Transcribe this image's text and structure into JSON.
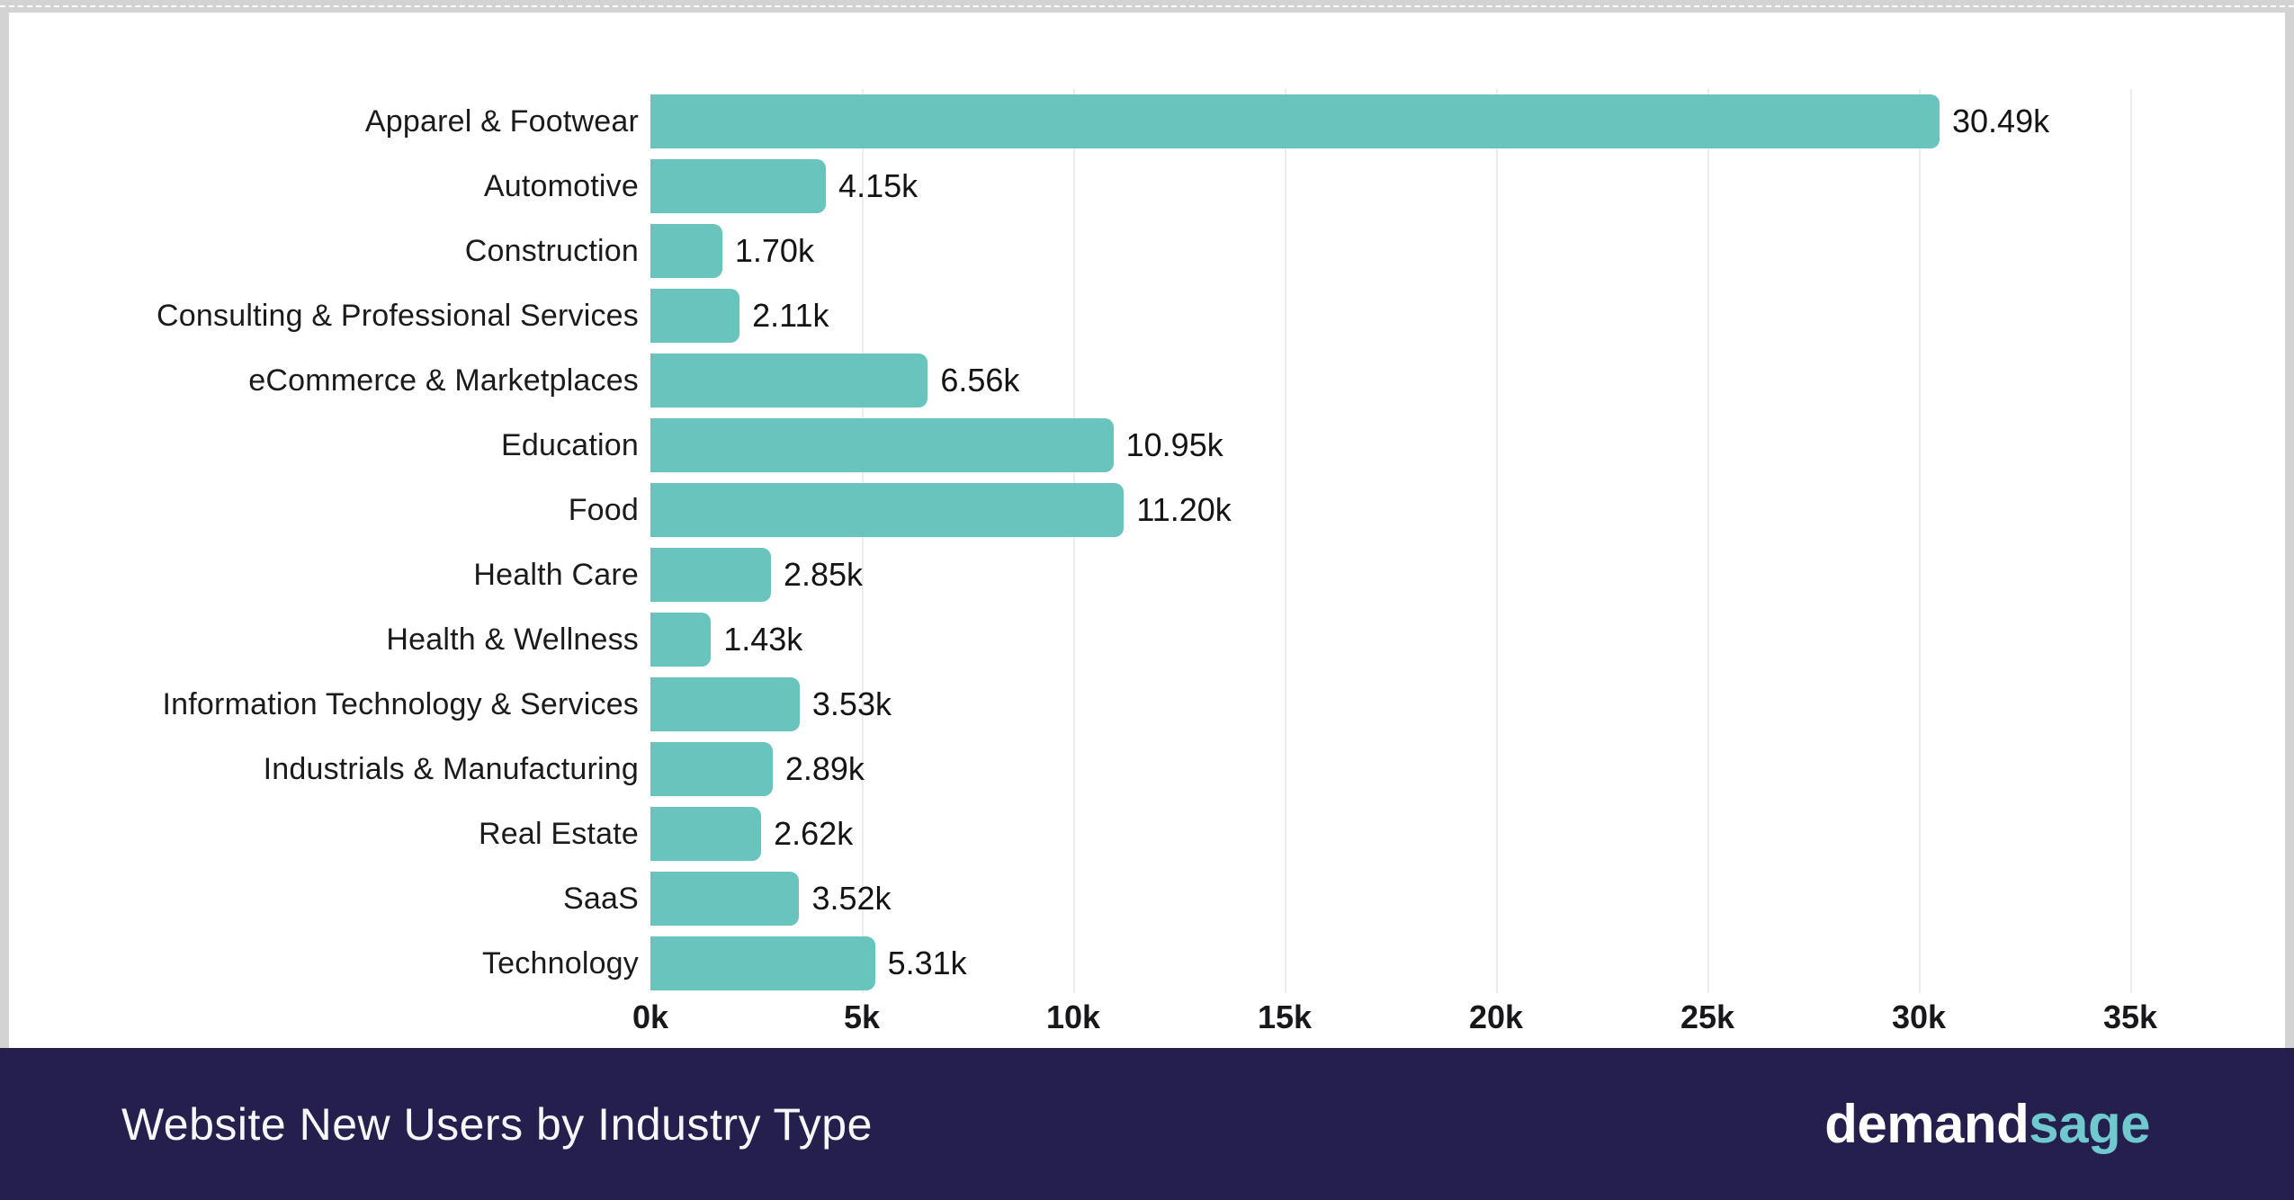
{
  "colors": {
    "bar": "#68c4bd",
    "grid": "#ececec",
    "footer_bg": "#251f4e",
    "frame": "#d3d3d3",
    "text": "#1b1b1b",
    "title_text": "#f7f7fa",
    "logo_accent": "#70c9cf"
  },
  "chart_data": {
    "type": "bar",
    "orientation": "horizontal",
    "title": "Website New Users by Industry Type",
    "xlabel": "",
    "ylabel": "",
    "xlim": [
      0,
      35000
    ],
    "grid": "vertical",
    "legend": "none",
    "categories": [
      "Apparel & Footwear",
      "Automotive",
      "Construction",
      "Consulting & Professional Services",
      "eCommerce & Marketplaces",
      "Education",
      "Food",
      "Health Care",
      "Health & Wellness",
      "Information Technology & Services",
      "Industrials & Manufacturing",
      "Real Estate",
      "SaaS",
      "Technology"
    ],
    "values": [
      30490,
      4150,
      1700,
      2110,
      6560,
      10950,
      11200,
      2850,
      1430,
      3530,
      2890,
      2620,
      3520,
      5310
    ],
    "value_labels": [
      "30.49k",
      "4.15k",
      "1.70k",
      "2.11k",
      "6.56k",
      "10.95k",
      "11.20k",
      "2.85k",
      "1.43k",
      "3.53k",
      "2.89k",
      "2.62k",
      "3.52k",
      "5.31k"
    ],
    "x_tick_labels": [
      "0k",
      "5k",
      "10k",
      "15k",
      "20k",
      "25k",
      "30k",
      "35k"
    ],
    "x_tick_values": [
      0,
      5000,
      10000,
      15000,
      20000,
      25000,
      30000,
      35000
    ]
  },
  "footer": {
    "title": "Website New Users by Industry Type",
    "logo": {
      "part1": "demand",
      "part2": "sage"
    }
  }
}
